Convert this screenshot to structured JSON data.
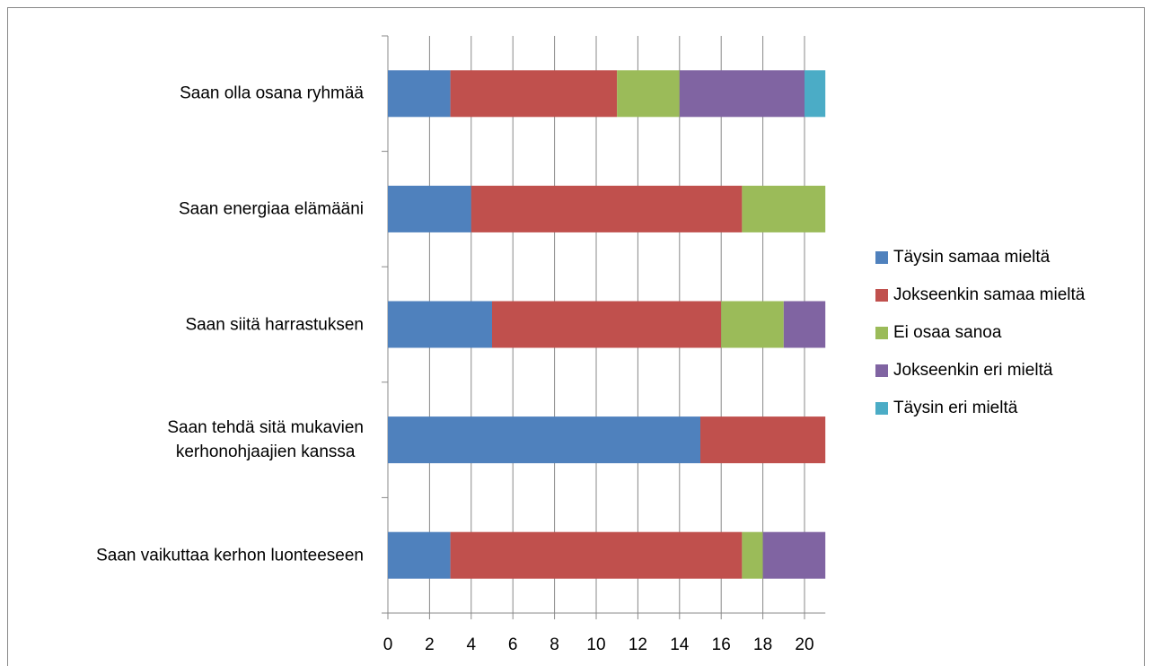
{
  "chart_data": {
    "type": "stacked-barh",
    "categories": [
      "Saan olla osana ryhmää",
      "Saan energiaa elämääni",
      "Saan siitä harrastuksen",
      "Saan tehdä sitä mukavien\nkerhonohjaajien kanssa",
      "Saan vaikuttaa kerhon luonteeseen"
    ],
    "series": [
      {
        "name": "Täysin samaa mieltä",
        "color": "#4f81bd",
        "values": [
          3,
          4,
          5,
          15,
          3
        ]
      },
      {
        "name": "Jokseenkin samaa mieltä",
        "color": "#c0504d",
        "values": [
          8,
          13,
          11,
          6,
          14
        ]
      },
      {
        "name": "Ei osaa sanoa",
        "color": "#9bbb59",
        "values": [
          3,
          4,
          3,
          0,
          1
        ]
      },
      {
        "name": "Jokseenkin eri mieltä",
        "color": "#8064a2",
        "values": [
          6,
          0,
          2,
          0,
          3
        ]
      },
      {
        "name": "Täysin eri mieltä",
        "color": "#4bacc6",
        "values": [
          1,
          0,
          0,
          0,
          0
        ]
      }
    ],
    "xlim": [
      0,
      21
    ],
    "xticks": [
      0,
      2,
      4,
      6,
      8,
      10,
      12,
      14,
      16,
      18,
      20
    ],
    "grid": true,
    "legend": "right"
  }
}
